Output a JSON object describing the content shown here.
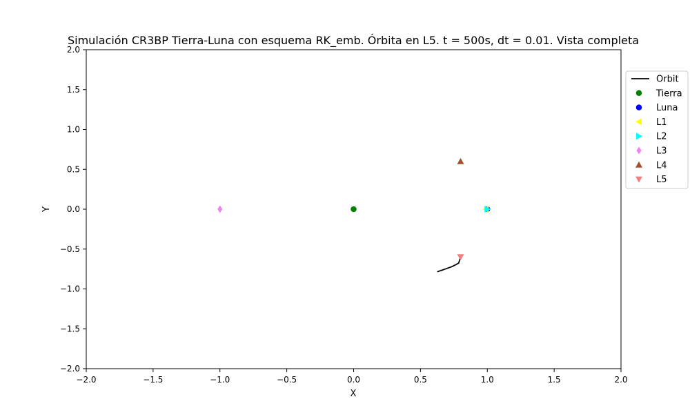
{
  "chart_data": {
    "type": "scatter",
    "title": "Simulación CR3BP Tierra-Luna con esquema RK_emb. Órbita en L5. t = 500s, dt = 0.01. Vista completa",
    "xlabel": "X",
    "ylabel": "Y",
    "xlim": [
      -2.0,
      2.0
    ],
    "ylim": [
      -2.0,
      2.0
    ],
    "xticks": [
      -2.0,
      -1.5,
      -1.0,
      -0.5,
      0.0,
      0.5,
      1.0,
      1.5,
      2.0
    ],
    "yticks": [
      -2.0,
      -1.5,
      -1.0,
      -0.5,
      0.0,
      0.5,
      1.0,
      1.5,
      2.0
    ],
    "xtick_labels": [
      "−2.0",
      "−1.5",
      "−1.0",
      "−0.5",
      "0.0",
      "0.5",
      "1.0",
      "1.5",
      "2.0"
    ],
    "ytick_labels": [
      "−2.0",
      "−1.5",
      "−1.0",
      "−0.5",
      "0.0",
      "0.5",
      "1.0",
      "1.5",
      "2.0"
    ],
    "grid": false,
    "legend_position": "outside right, upper",
    "orbit": {
      "name": "Orbit",
      "color": "#000000",
      "x": [
        0.625,
        0.66,
        0.7,
        0.735,
        0.765,
        0.786,
        0.8
      ],
      "y": [
        -0.785,
        -0.765,
        -0.742,
        -0.72,
        -0.695,
        -0.675,
        -0.6
      ]
    },
    "series": [
      {
        "name": "Tierra",
        "marker": "circle",
        "color": "#008000",
        "x": 0.0,
        "y": 0.0
      },
      {
        "name": "Luna",
        "marker": "circle",
        "color": "#0000ff",
        "x": 1.0,
        "y": 0.0
      },
      {
        "name": "L1",
        "marker": "triangle-left",
        "color": "#ffff00",
        "x": 0.99,
        "y": 0.0
      },
      {
        "name": "L2",
        "marker": "triangle-right",
        "color": "#00ffff",
        "x": 1.0,
        "y": 0.0
      },
      {
        "name": "L3",
        "marker": "diamond",
        "color": "#ee82ee",
        "x": -1.0,
        "y": 0.0
      },
      {
        "name": "L4",
        "marker": "triangle-up",
        "color": "#a0522d",
        "x": 0.8,
        "y": 0.6
      },
      {
        "name": "L5",
        "marker": "triangle-down",
        "color": "#f08080",
        "x": 0.8,
        "y": -0.6
      }
    ]
  }
}
